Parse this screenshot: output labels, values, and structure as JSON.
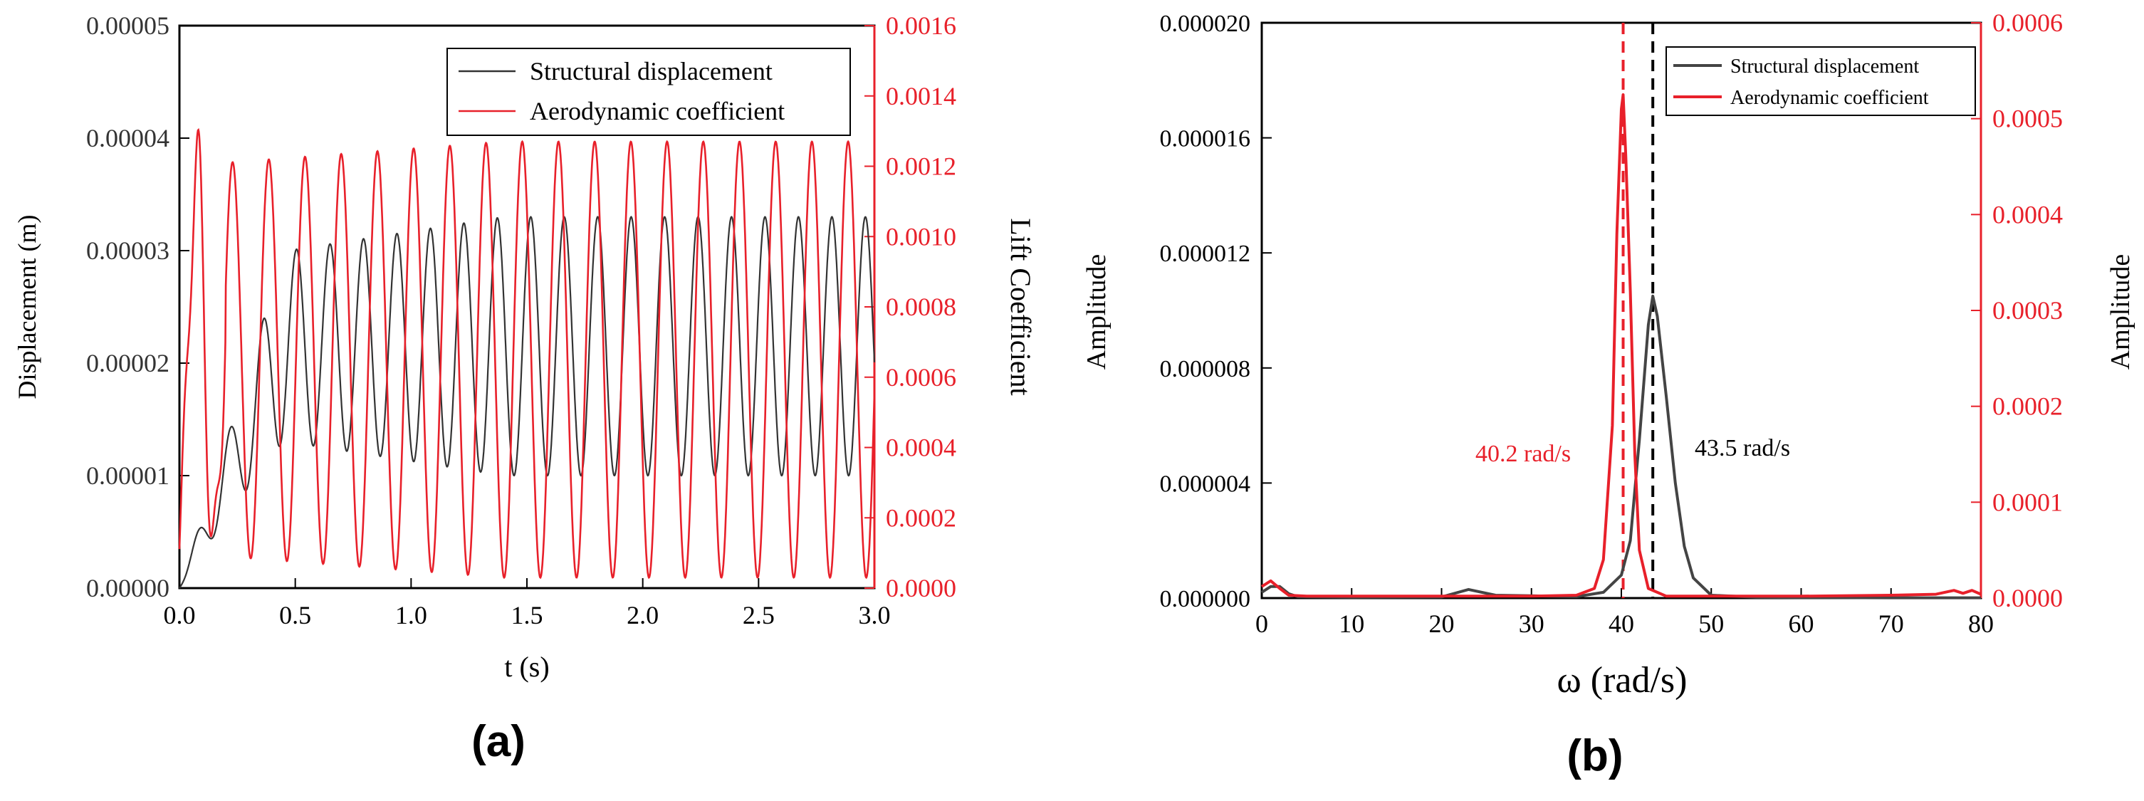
{
  "chart_data": [
    {
      "type": "line",
      "panel_label": "(a)",
      "xlabel": "t (s)",
      "ylabel_left": "Displacement (m)",
      "ylabel_right": "Lift Coefficient",
      "xlim": [
        0.0,
        3.0
      ],
      "ylim_left": [
        0.0,
        5e-05
      ],
      "ylim_right": [
        0.0,
        0.0016
      ],
      "x_ticks": [
        "0.0",
        "0.5",
        "1.0",
        "1.5",
        "2.0",
        "2.5",
        "3.0"
      ],
      "y_ticks_left": [
        "0.00000",
        "0.00001",
        "0.00002",
        "0.00003",
        "0.00004",
        "0.00005"
      ],
      "y_ticks_right": [
        "0.0000",
        "0.0002",
        "0.0004",
        "0.0006",
        "0.0008",
        "0.0010",
        "0.0012",
        "0.0014",
        "0.0016"
      ],
      "legend": [
        "Structural displacement",
        "Aerodynamic coefficient"
      ],
      "legend_position": "top-right",
      "series": [
        {
          "name": "Structural displacement",
          "axis": "left",
          "color": "#333333",
          "frequency_rad_s": 43.5,
          "mean": 2.15e-05,
          "amplitude_start": 7e-06,
          "amplitude_end": 1.15e-05
        },
        {
          "name": "Aerodynamic coefficient",
          "axis": "right",
          "color": "#e8202a",
          "frequency_rad_s": 40.2,
          "mean": 0.00065,
          "amplitude_start": 0.00055,
          "amplitude_end": 0.00062
        }
      ]
    },
    {
      "type": "line",
      "panel_label": "(b)",
      "xlabel": "ω (rad/s)",
      "ylabel_left": "Amplitude",
      "ylabel_right": "Amplitude",
      "xlim": [
        0,
        80
      ],
      "ylim_left": [
        0.0,
        2e-05
      ],
      "ylim_right": [
        0.0,
        0.0006
      ],
      "x_ticks": [
        "0",
        "10",
        "20",
        "30",
        "40",
        "50",
        "60",
        "70",
        "80"
      ],
      "y_ticks_left": [
        "0.000000",
        "0.000004",
        "0.000008",
        "0.000012",
        "0.000016",
        "0.000020"
      ],
      "y_ticks_right": [
        "0.0000",
        "0.0001",
        "0.0002",
        "0.0003",
        "0.0004",
        "0.0005",
        "0.0006"
      ],
      "legend": [
        "Structural displacement",
        "Aerodynamic coefficient"
      ],
      "legend_position": "top-right",
      "annotations": [
        {
          "text": "40.2 rad/s",
          "x": 40.2,
          "color": "#e8202a"
        },
        {
          "text": "43.5 rad/s",
          "x": 43.5,
          "color": "#000000"
        }
      ],
      "series": [
        {
          "name": "Structural displacement",
          "axis": "left",
          "color": "#444444",
          "x": [
            0,
            1,
            2,
            3,
            4,
            10,
            20,
            23,
            26,
            30,
            35,
            38,
            40,
            41,
            42,
            43,
            43.5,
            44,
            45,
            46,
            47,
            48,
            50,
            55,
            60,
            70,
            80
          ],
          "y": [
            2e-07,
            4e-07,
            4e-07,
            1.5e-07,
            5e-08,
            3e-08,
            4e-08,
            3e-07,
            1e-07,
            8e-08,
            5e-08,
            2e-07,
            8e-07,
            2e-06,
            5.5e-06,
            9.5e-06,
            1.05e-05,
            9.8e-06,
            7e-06,
            4e-06,
            1.8e-06,
            7e-07,
            1e-07,
            3e-08,
            2e-08,
            1e-08,
            1e-08
          ]
        },
        {
          "name": "Aerodynamic coefficient",
          "axis": "right",
          "color": "#e8202a",
          "x": [
            0,
            1,
            2,
            3,
            5,
            10,
            20,
            30,
            35,
            37,
            38,
            39,
            39.5,
            40,
            40.2,
            40.5,
            41,
            41.5,
            42,
            43,
            45,
            50,
            60,
            70,
            75,
            77,
            78,
            79,
            80
          ],
          "y": [
            1.2e-05,
            1.8e-05,
            1e-05,
            3e-06,
            2e-06,
            2e-06,
            2e-06,
            2e-06,
            3e-06,
            1e-05,
            4e-05,
            0.00018,
            0.00038,
            0.00051,
            0.000525,
            0.00046,
            0.00032,
            0.00015,
            5e-05,
            1e-05,
            2e-06,
            2e-06,
            2e-06,
            3e-06,
            4e-06,
            8e-06,
            5e-06,
            8e-06,
            4e-06
          ]
        }
      ]
    }
  ]
}
